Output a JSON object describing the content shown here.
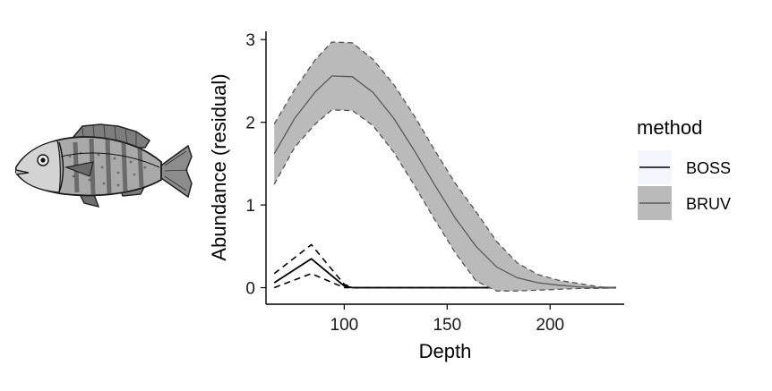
{
  "chart_data": {
    "type": "line",
    "xlabel": "Depth",
    "ylabel": "Abundance (residual)",
    "xlim": [
      62,
      236
    ],
    "ylim": [
      -0.2,
      3.1
    ],
    "xticks": [
      100,
      150,
      200
    ],
    "yticks": [
      0,
      1,
      2,
      3
    ],
    "grid": false,
    "legend": {
      "title": "method",
      "position": "right",
      "entries": [
        "BOSS",
        "BRUV"
      ]
    },
    "series": [
      {
        "name": "BOSS",
        "color": "#000000",
        "ribbon": false,
        "x": [
          66,
          84,
          100,
          104,
          232
        ],
        "y": [
          0.06,
          0.35,
          0.02,
          0.0,
          0.0
        ],
        "lower": [
          0.0,
          0.17,
          0.0,
          0.0,
          0.0
        ],
        "upper": [
          0.17,
          0.52,
          0.04,
          0.0,
          0.0
        ]
      },
      {
        "name": "BRUV",
        "color": "#5a5a5a",
        "ribbon": true,
        "ribbon_color": "#bababa",
        "x": [
          66,
          76,
          86,
          94,
          104,
          114,
          124,
          134,
          144,
          154,
          164,
          174,
          184,
          194,
          204,
          214,
          224,
          232
        ],
        "y": [
          1.62,
          2.05,
          2.37,
          2.56,
          2.55,
          2.36,
          2.05,
          1.66,
          1.24,
          0.84,
          0.5,
          0.25,
          0.12,
          0.06,
          0.03,
          0.01,
          0.0,
          0.0
        ],
        "lower": [
          1.25,
          1.7,
          1.98,
          2.15,
          2.14,
          1.96,
          1.64,
          1.24,
          0.82,
          0.42,
          0.08,
          -0.04,
          -0.04,
          -0.03,
          -0.02,
          -0.01,
          -0.01,
          0.0
        ],
        "upper": [
          1.98,
          2.4,
          2.76,
          2.97,
          2.96,
          2.76,
          2.46,
          2.08,
          1.66,
          1.26,
          0.92,
          0.56,
          0.3,
          0.16,
          0.09,
          0.05,
          0.01,
          0.0
        ]
      }
    ]
  },
  "legend_colors": {
    "boss_key_background": "#f4f5fd",
    "bruv_key_background": "#bababa"
  },
  "illustration": {
    "icon": "fish-icon"
  }
}
